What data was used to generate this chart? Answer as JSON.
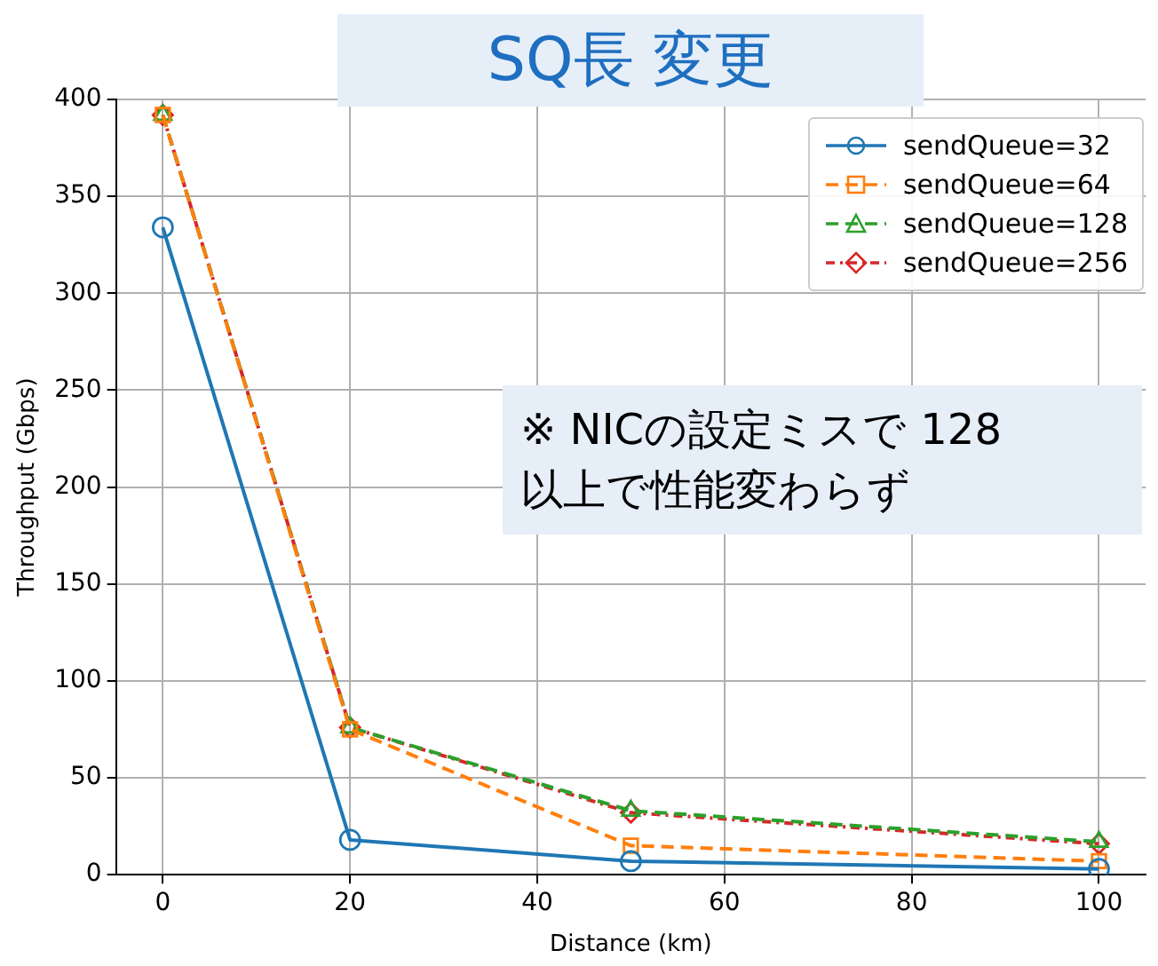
{
  "chart_data": {
    "type": "line",
    "title": "SQ長 変更",
    "xlabel": "Distance (km)",
    "ylabel": "Throughput (Gbps)",
    "x": [
      0,
      20,
      50,
      100
    ],
    "series": [
      {
        "name": "sendQueue=32",
        "color": "#1f77b4",
        "marker": "circle",
        "line_style": "solid",
        "values": [
          334,
          18,
          7,
          3
        ]
      },
      {
        "name": "sendQueue=64",
        "color": "#ff7f0e",
        "marker": "square",
        "line_style": "dashed",
        "values": [
          392,
          75,
          15,
          7
        ]
      },
      {
        "name": "sendQueue=128",
        "color": "#2ca02c",
        "marker": "triangle",
        "line_style": "dashed",
        "values": [
          392,
          76,
          33,
          17
        ]
      },
      {
        "name": "sendQueue=256",
        "color": "#d62728",
        "marker": "diamond",
        "line_style": "dotted",
        "values": [
          392,
          76,
          32,
          16
        ]
      }
    ],
    "xlim": [
      -5,
      105
    ],
    "xticks": [
      0,
      20,
      40,
      60,
      80,
      100
    ],
    "ylim": [
      0,
      400
    ],
    "yticks": [
      0,
      50,
      100,
      150,
      200,
      250,
      300,
      350,
      400
    ],
    "grid": true,
    "legend": "top right",
    "annotations": [
      "※ NICの設定ミスで 128 以上で性能変わらず"
    ]
  }
}
